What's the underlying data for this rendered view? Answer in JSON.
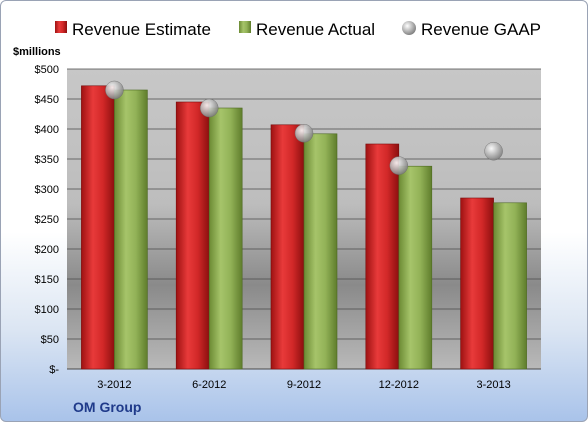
{
  "chart_data": {
    "type": "bar",
    "title": "",
    "company": "OM Group",
    "unit_label": "$millions",
    "categories": [
      "3-2012",
      "6-2012",
      "9-2012",
      "12-2012",
      "3-2013"
    ],
    "series": [
      {
        "name": "Revenue Estimate",
        "type": "bar",
        "color": "#d42a2a",
        "values": [
          472,
          445,
          407,
          375,
          285
        ]
      },
      {
        "name": "Revenue Actual",
        "type": "bar",
        "color": "#93b35a",
        "values": [
          465,
          435,
          392,
          338,
          277
        ]
      },
      {
        "name": "Revenue GAAP",
        "type": "scatter",
        "color": "#a0a0a0",
        "values": [
          465,
          435,
          393,
          339,
          363
        ]
      }
    ],
    "y_ticks": [
      0,
      50,
      100,
      150,
      200,
      250,
      300,
      350,
      400,
      450,
      500
    ],
    "y_tick_labels": [
      "$-",
      "$50",
      "$100",
      "$150",
      "$200",
      "$250",
      "$300",
      "$350",
      "$400",
      "$450",
      "$500"
    ],
    "ylim": [
      0,
      500
    ],
    "grid": true,
    "legend_position": "top"
  }
}
